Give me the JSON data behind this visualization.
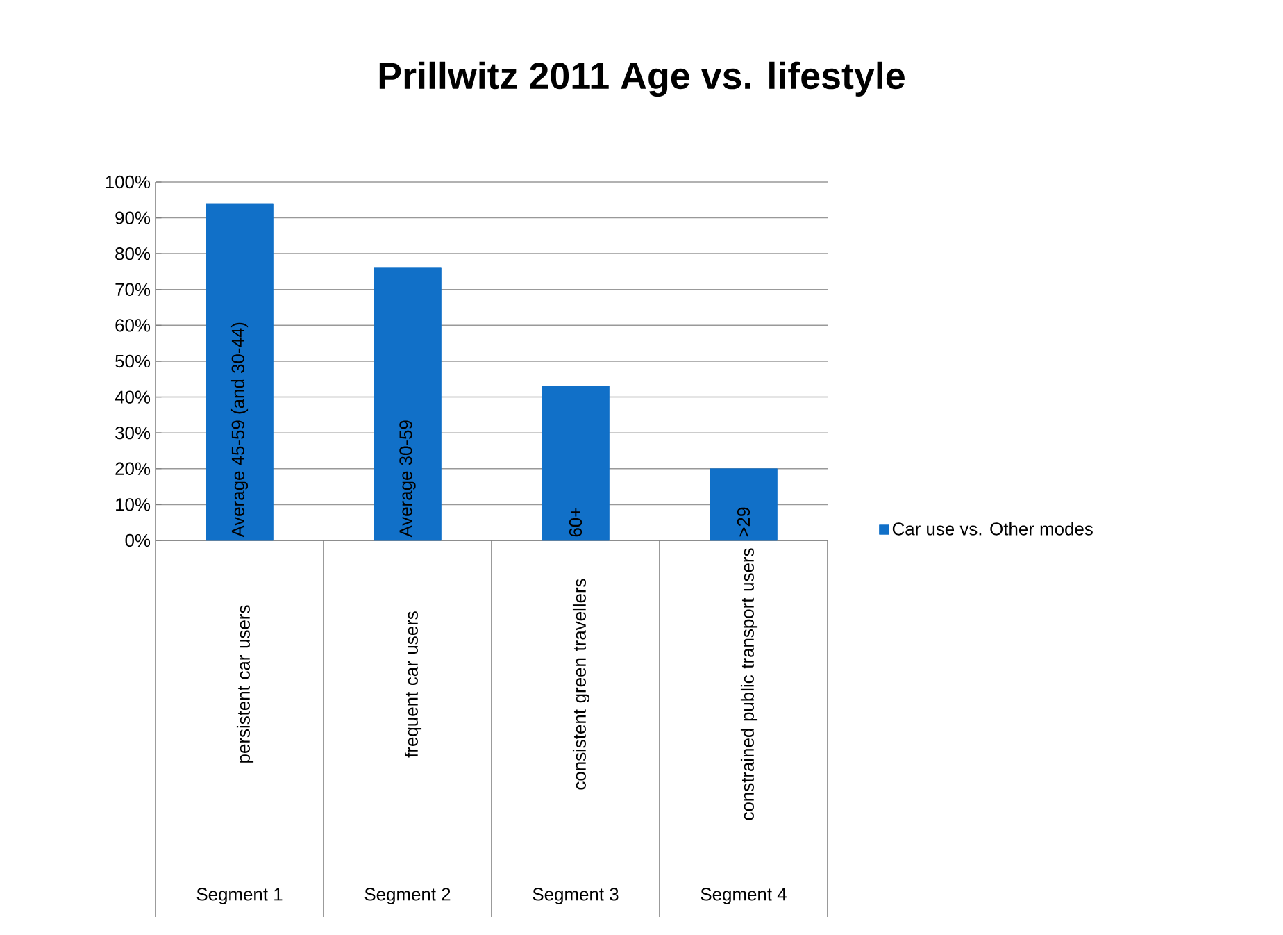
{
  "chart_data": {
    "type": "bar",
    "title": "Prillwitz 2011 Age vs. lifestyle",
    "categories": [
      "persistent car users",
      "frequent car users",
      "consistent green travellers",
      "constrained public transport users"
    ],
    "series": [
      {
        "name": "Car use vs. Other modes",
        "color": "#1170c8",
        "values": [
          94,
          76,
          43,
          20
        ]
      }
    ],
    "ylim": [
      0,
      100
    ],
    "yticks": [
      {
        "value": 0,
        "label": "0%"
      },
      {
        "value": 10,
        "label": "10%"
      },
      {
        "value": 20,
        "label": "20%"
      },
      {
        "value": 30,
        "label": "30%"
      },
      {
        "value": 40,
        "label": "40%"
      },
      {
        "value": 50,
        "label": "50%"
      },
      {
        "value": 60,
        "label": "60%"
      },
      {
        "value": 70,
        "label": "70%"
      },
      {
        "value": 80,
        "label": "80%"
      },
      {
        "value": 90,
        "label": "90%"
      },
      {
        "value": 100,
        "label": "100%"
      }
    ],
    "grid": "y",
    "legend": "right",
    "annotations": [
      {
        "text": "Average 45-59 (and 30-44)",
        "x": "persistent car users",
        "y": 0
      },
      {
        "text": "Average 30-59",
        "x": "frequent car users",
        "y": 0
      },
      {
        "text": "60+",
        "x": "consistent green travellers",
        "y": 0
      },
      {
        "text": ">29",
        "x": "constrained public transport users",
        "y": 0
      },
      "Segment 1",
      "Segment 2",
      "Segment 3",
      "Segment 4"
    ]
  }
}
